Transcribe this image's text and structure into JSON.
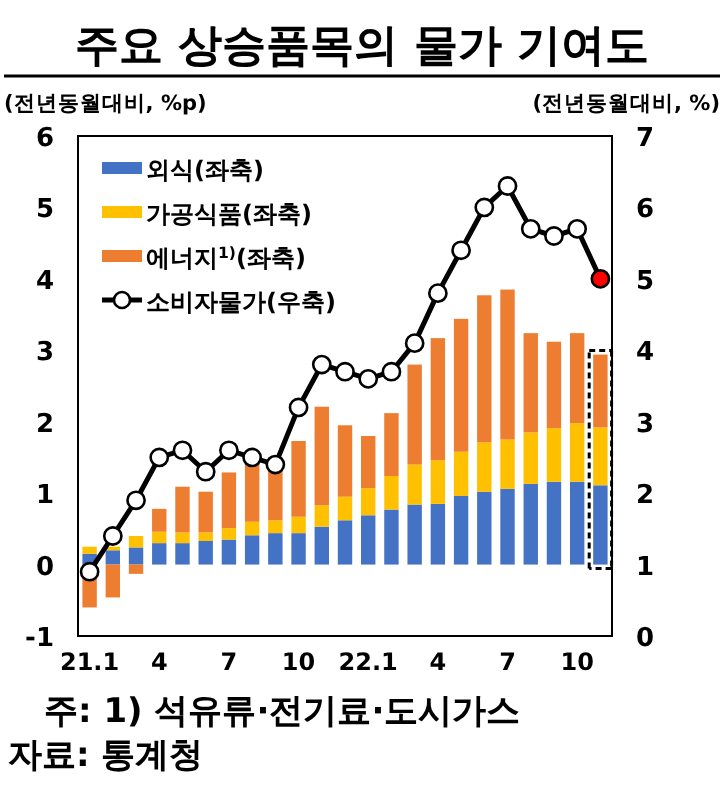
{
  "chart_data": {
    "type": "bar",
    "stacked": true,
    "title": "주요 상승품목의 물가 기여도",
    "ylabel": "(전년동월대비, %p)",
    "y2label": "(전년동월대비, %)",
    "categories": [
      "21.1",
      null,
      null,
      "4",
      null,
      null,
      "7",
      null,
      null,
      "10",
      null,
      null,
      "22.1",
      null,
      null,
      "4",
      null,
      null,
      "7",
      null,
      null,
      "10",
      null
    ],
    "series": [
      {
        "name": "외식(좌축)",
        "color": "#4472c4",
        "values": [
          0.15,
          0.2,
          0.24,
          0.3,
          0.3,
          0.33,
          0.35,
          0.41,
          0.44,
          0.44,
          0.53,
          0.62,
          0.69,
          0.77,
          0.84,
          0.85,
          0.96,
          1.02,
          1.06,
          1.13,
          1.16,
          1.16,
          1.11
        ]
      },
      {
        "name": "가공식품(좌축)",
        "color": "#ffc000",
        "values": [
          0.1,
          0.05,
          0.16,
          0.16,
          0.15,
          0.12,
          0.16,
          0.19,
          0.18,
          0.23,
          0.3,
          0.33,
          0.38,
          0.47,
          0.56,
          0.61,
          0.62,
          0.69,
          0.69,
          0.72,
          0.75,
          0.82,
          0.81
        ]
      },
      {
        "name": "에너지$^{1)}$(좌축)",
        "color": "#ed7d31",
        "values": [
          -0.6,
          -0.46,
          -0.13,
          0.32,
          0.64,
          0.57,
          0.78,
          0.84,
          0.71,
          1.06,
          1.38,
          1.0,
          0.73,
          0.88,
          1.4,
          1.71,
          1.86,
          2.06,
          2.1,
          1.39,
          1.21,
          1.26,
          1.02
        ]
      },
      {
        "name": "소비자물가(우축)",
        "type": "line",
        "axis": "y2",
        "color": "#000000",
        "marker": "circle",
        "colors": [
          "#ffffff",
          "#ffffff",
          "#ffffff",
          "#ffffff",
          "#ffffff",
          "#ffffff",
          "#ffffff",
          "#ffffff",
          "#ffffff",
          "#ffffff",
          "#ffffff",
          "#ffffff",
          "#ffffff",
          "#ffffff",
          "#ffffff",
          "#ffffff",
          "#ffffff",
          "#ffffff",
          "#ffffff",
          "#ffffff",
          "#ffffff",
          "#ffffff",
          "#ff0000"
        ],
        "values": [
          0.9,
          1.4,
          1.9,
          2.5,
          2.6,
          2.3,
          2.6,
          2.5,
          2.4,
          3.2,
          3.8,
          3.7,
          3.6,
          3.7,
          4.1,
          4.8,
          5.4,
          6.0,
          6.3,
          5.7,
          5.6,
          5.7,
          5.0
        ]
      }
    ],
    "ylim": [
      -1,
      6
    ],
    "yticks": [
      -1,
      0,
      1,
      2,
      3,
      4,
      5,
      6
    ],
    "y2lim": [
      0,
      7
    ],
    "y2ticks": [
      0,
      1,
      2,
      3,
      4,
      5,
      6,
      7
    ],
    "legend": "top left",
    "annotations": [
      "주: 1) 석유류·전기료·도시가스",
      "자료: 통계청"
    ]
  }
}
